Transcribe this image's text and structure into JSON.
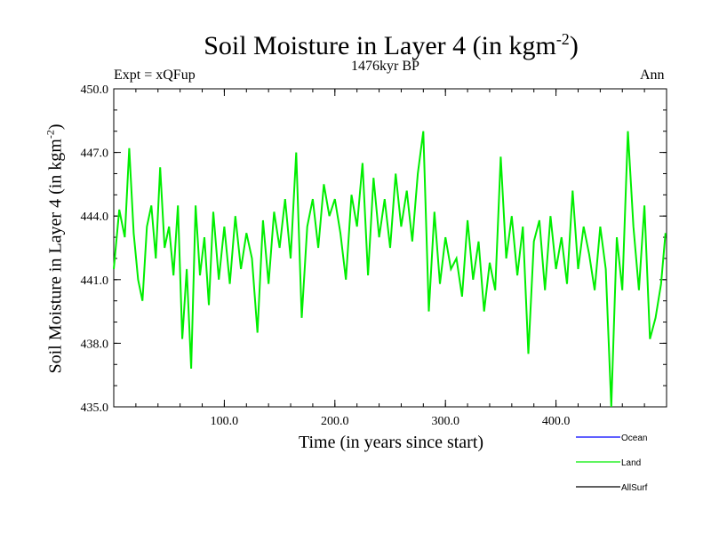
{
  "chart_data": {
    "type": "line",
    "title": "Soil Moisture in Layer 4 (in kgm",
    "title_sup": "-2",
    "title_end": ")",
    "subtitle_left": "Expt = xQFup",
    "subtitle_center": "1476kyr BP",
    "subtitle_right": "Ann",
    "xlabel": "Time (in years since start)",
    "ylabel": "Soil Moisture in Layer 4 (in kgm",
    "ylabel_sup": "-2",
    "ylabel_end": ")",
    "xlim": [
      0,
      500
    ],
    "ylim": [
      435.0,
      450.0
    ],
    "xticks": [
      100,
      200,
      300,
      400
    ],
    "xtick_labels": [
      "100.0",
      "200.0",
      "300.0",
      "400.0"
    ],
    "yticks": [
      435,
      438,
      441,
      444,
      447,
      450
    ],
    "ytick_labels": [
      "435.0",
      "438.0",
      "441.0",
      "444.0",
      "447.0",
      "450.0"
    ],
    "legend": [
      {
        "name": "Ocean",
        "color": "#0000ff"
      },
      {
        "name": "Land",
        "color": "#00ee00"
      },
      {
        "name": "AllSurf",
        "color": "#000000"
      }
    ],
    "series": [
      {
        "name": "Land",
        "color": "#00ee00",
        "x": [
          0,
          5,
          10,
          14,
          18,
          22,
          26,
          30,
          34,
          38,
          42,
          46,
          50,
          54,
          58,
          62,
          66,
          70,
          74,
          78,
          82,
          86,
          90,
          95,
          100,
          105,
          110,
          115,
          120,
          125,
          130,
          135,
          140,
          145,
          150,
          155,
          160,
          165,
          170,
          175,
          180,
          185,
          190,
          195,
          200,
          205,
          210,
          215,
          220,
          225,
          230,
          235,
          240,
          245,
          250,
          255,
          260,
          265,
          270,
          275,
          280,
          285,
          290,
          295,
          300,
          305,
          310,
          315,
          320,
          325,
          330,
          335,
          340,
          345,
          350,
          355,
          360,
          365,
          370,
          375,
          380,
          385,
          390,
          395,
          400,
          405,
          410,
          415,
          420,
          425,
          430,
          435,
          440,
          445,
          450,
          455,
          460,
          465,
          470,
          475,
          480,
          485,
          490,
          495,
          499
        ],
        "values": [
          441.5,
          444.3,
          443.0,
          447.2,
          443.2,
          441.0,
          440.0,
          443.5,
          444.5,
          442.0,
          446.3,
          442.5,
          443.5,
          441.2,
          444.5,
          438.2,
          441.5,
          436.8,
          444.5,
          441.2,
          443.0,
          439.8,
          444.2,
          441.0,
          443.5,
          440.8,
          444.0,
          441.5,
          443.2,
          442.0,
          438.5,
          443.8,
          440.8,
          444.2,
          442.5,
          444.8,
          442.0,
          447.0,
          439.2,
          443.5,
          444.8,
          442.5,
          445.5,
          444.0,
          444.8,
          443.2,
          441.0,
          445.0,
          443.5,
          446.5,
          441.2,
          445.8,
          443.0,
          444.8,
          442.5,
          446.0,
          443.5,
          445.2,
          442.8,
          446.0,
          448.0,
          439.5,
          444.2,
          440.8,
          443.0,
          441.5,
          442.0,
          440.2,
          443.8,
          441.0,
          442.8,
          439.5,
          441.8,
          440.5,
          446.8,
          442.0,
          444.0,
          441.2,
          443.5,
          437.5,
          442.8,
          443.8,
          440.5,
          444.0,
          441.5,
          443.0,
          440.8,
          445.2,
          441.5,
          443.5,
          442.2,
          440.5,
          443.5,
          441.5,
          435.0,
          443.0,
          440.5,
          448.0,
          443.5,
          440.5,
          444.5,
          438.2,
          439.2,
          440.8,
          443.2
        ]
      }
    ]
  }
}
